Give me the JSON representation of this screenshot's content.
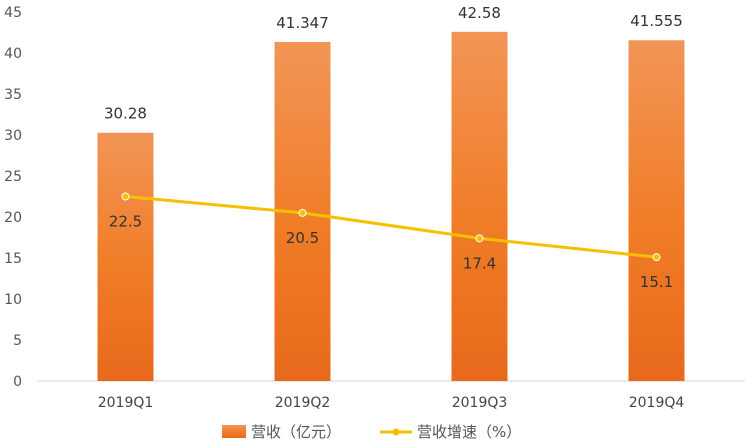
{
  "chart_data": {
    "type": "bar",
    "categories": [
      "2019Q1",
      "2019Q2",
      "2019Q3",
      "2019Q4"
    ],
    "series": [
      {
        "name": "营收（亿元）",
        "type": "bar",
        "values": [
          30.28,
          41.347,
          42.58,
          41.555
        ],
        "labels": [
          "30.28",
          "41.347",
          "42.58",
          "41.555"
        ],
        "color": "#F07A24"
      },
      {
        "name": "营收增速（%）",
        "type": "line",
        "values": [
          22.5,
          20.5,
          17.4,
          15.1
        ],
        "labels": [
          "22.5",
          "20.5",
          "17.4",
          "15.1"
        ],
        "color": "#F5C000"
      }
    ],
    "yaxis": {
      "min": 0,
      "max": 45,
      "step": 5,
      "ticks": [
        "0",
        "5",
        "10",
        "15",
        "20",
        "25",
        "30",
        "35",
        "40",
        "45"
      ]
    },
    "grid": false,
    "legend": "bottom"
  }
}
